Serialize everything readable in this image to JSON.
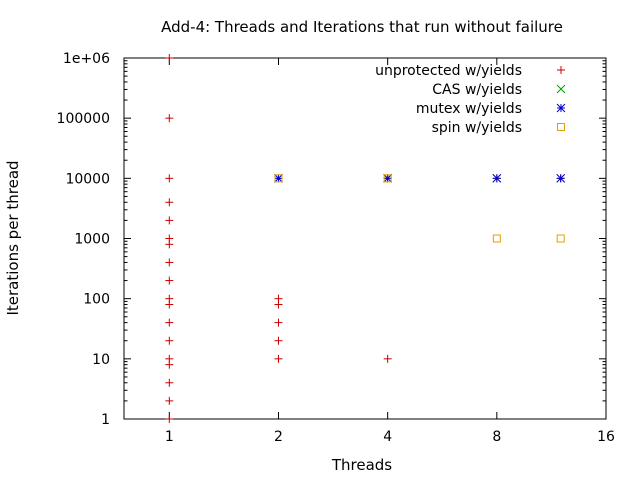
{
  "chart_data": {
    "type": "scatter",
    "title": "Add-4: Threads and Iterations that run without failure",
    "xlabel": "Threads",
    "ylabel": "Iterations per thread",
    "x_scale": "log2",
    "y_scale": "log10",
    "xlim": [
      0.75,
      16
    ],
    "ylim": [
      1,
      1000000
    ],
    "x_ticks": [
      1,
      2,
      4,
      8,
      16
    ],
    "x_tick_labels": [
      "1",
      "2",
      "4",
      "8",
      "16"
    ],
    "y_ticks": [
      1,
      10,
      100,
      1000,
      10000,
      100000,
      1000000
    ],
    "y_tick_labels": [
      "1",
      "10",
      "100",
      "1000",
      "10000",
      "100000",
      "1e+06"
    ],
    "grid": false,
    "legend_position": "top-right",
    "series": [
      {
        "name": "unprotected w/yields",
        "marker": "plus",
        "color": "#cc0000",
        "points": [
          [
            1,
            1
          ],
          [
            1,
            2
          ],
          [
            1,
            4
          ],
          [
            1,
            8
          ],
          [
            1,
            10
          ],
          [
            1,
            20
          ],
          [
            1,
            40
          ],
          [
            1,
            80
          ],
          [
            1,
            100
          ],
          [
            1,
            200
          ],
          [
            1,
            400
          ],
          [
            1,
            800
          ],
          [
            1,
            1000
          ],
          [
            1,
            2000
          ],
          [
            1,
            4000
          ],
          [
            1,
            10000
          ],
          [
            1,
            100000
          ],
          [
            1,
            1000000
          ],
          [
            2,
            10
          ],
          [
            2,
            20
          ],
          [
            2,
            40
          ],
          [
            2,
            80
          ],
          [
            2,
            100
          ],
          [
            2,
            10000
          ],
          [
            4,
            10
          ],
          [
            4,
            10000
          ],
          [
            8,
            10000
          ],
          [
            12,
            10000
          ]
        ]
      },
      {
        "name": "CAS w/yields",
        "marker": "cross",
        "color": "#00a000",
        "points": [
          [
            2,
            10000
          ],
          [
            4,
            10000
          ],
          [
            8,
            10000
          ],
          [
            12,
            10000
          ]
        ]
      },
      {
        "name": "mutex w/yields",
        "marker": "star",
        "color": "#0000cc",
        "points": [
          [
            2,
            10000
          ],
          [
            4,
            10000
          ],
          [
            8,
            10000
          ],
          [
            12,
            10000
          ]
        ]
      },
      {
        "name": "spin w/yields",
        "marker": "square",
        "color": "#e69f00",
        "points": [
          [
            2,
            10000
          ],
          [
            4,
            10000
          ],
          [
            8,
            1000
          ],
          [
            12,
            1000
          ]
        ]
      }
    ]
  }
}
